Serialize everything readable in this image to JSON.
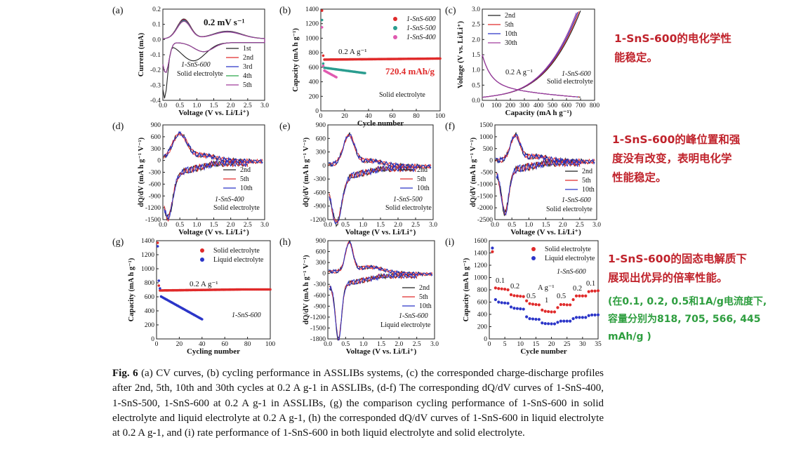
{
  "panels": [
    {
      "letter": "(a)",
      "xlabel": "Voltage (V vs. Li/Li⁺)",
      "ylabel": "Current (mA)",
      "xticks": [
        "0.0",
        "0.5",
        "1.0",
        "1.5",
        "2.0",
        "2.5",
        "3.0"
      ],
      "yticks": [
        "0.2",
        "0.1",
        "0.0",
        "-0.1",
        "-0.2",
        "-0.3",
        "-0.4"
      ],
      "annotation": "0.2 mV s⁻¹",
      "sample": "1-SnS-600",
      "electrolyte": "Solid electrolyte",
      "legend": [
        "1st",
        "2nd",
        "3rd",
        "4th",
        "5th"
      ]
    },
    {
      "letter": "(b)",
      "xlabel": "Cycle number",
      "ylabel": "Capacity (mA h g⁻¹)",
      "xticks": [
        "0",
        "20",
        "40",
        "60",
        "80",
        "100"
      ],
      "yticks": [
        "1400",
        "1200",
        "1000",
        "800",
        "600",
        "400",
        "200",
        "0"
      ],
      "annotation": "0.2 A g⁻¹",
      "highlight": "720.4  mAh/g",
      "electrolyte": "Solid electrolyte",
      "legend": [
        "1-SnS-600",
        "1-SnS-500",
        "1-SnS-400"
      ]
    },
    {
      "letter": "(c)",
      "xlabel": "Capacity (mA h g⁻¹)",
      "ylabel": "Voltage (V vs. Li/Li⁺)",
      "xticks": [
        "0",
        "100",
        "200",
        "300",
        "400",
        "500",
        "600",
        "700",
        "800"
      ],
      "yticks": [
        "3.0",
        "2.5",
        "2.0",
        "1.5",
        "1.0",
        "0.5",
        "0.0"
      ],
      "annotation": "0.2 A g⁻¹",
      "sample": "1-SnS-600",
      "electrolyte": "Solid electrolyte",
      "legend": [
        "2nd",
        "5th",
        "10th",
        "30th"
      ]
    },
    {
      "letter": "(d)",
      "xlabel": "Voltage (V vs. Li/Li⁺)",
      "ylabel": "dQ/dV (mA h g⁻¹ V⁻¹)",
      "xticks": [
        "0.0",
        "0.5",
        "1.0",
        "1.5",
        "2.0",
        "2.5",
        "3.0"
      ],
      "yticks": [
        "900",
        "600",
        "300",
        "0",
        "-300",
        "-600",
        "-900",
        "-1200",
        "-1500"
      ],
      "sample": "1-SnS-400",
      "electrolyte": "Solid electrolyte",
      "legend": [
        "2nd",
        "5th",
        "10th"
      ]
    },
    {
      "letter": "(e)",
      "xlabel": "Voltage (V vs. Li/Li⁺)",
      "ylabel": "dQ/dV (mA h g⁻¹ V⁻¹)",
      "xticks": [
        "0.0",
        "0.5",
        "1.0",
        "1.5",
        "2.0",
        "2.5",
        "3.0"
      ],
      "yticks": [
        "900",
        "600",
        "300",
        "0",
        "-300",
        "-600",
        "-900",
        "-1200"
      ],
      "sample": "1-SnS-500",
      "electrolyte": "Solid electrolyte",
      "legend": [
        "2nd",
        "5th",
        "10th"
      ]
    },
    {
      "letter": "(f)",
      "xlabel": "Voltage (V vs. Li/Li⁺)",
      "ylabel": "dQ/dV (mA h g⁻¹ V⁻¹)",
      "xticks": [
        "0.0",
        "0.5",
        "1.0",
        "1.5",
        "2.0",
        "2.5",
        "3.0"
      ],
      "yticks": [
        "1500",
        "1000",
        "500",
        "0",
        "-500",
        "-1000",
        "-1500",
        "-2000",
        "-2500"
      ],
      "sample": "1-SnS-600",
      "electrolyte": "Solid electrolyte",
      "legend": [
        "2nd",
        "5th",
        "10th"
      ]
    },
    {
      "letter": "(g)",
      "xlabel": "Cycling number",
      "ylabel": "Capacity (mA h g⁻¹)",
      "xticks": [
        "0",
        "20",
        "40",
        "60",
        "80",
        "100"
      ],
      "yticks": [
        "1400",
        "1200",
        "1000",
        "800",
        "600",
        "400",
        "200",
        "0"
      ],
      "annotation": "0.2 A g⁻¹",
      "sample": "1-SnS-600",
      "legend": [
        "Solid electrolyte",
        "Liquid electrolyte"
      ]
    },
    {
      "letter": "(h)",
      "xlabel": "Voltage (V vs. Li/Li⁺)",
      "ylabel": "dQ/dV (mA h g⁻¹ V⁻¹)",
      "xticks": [
        "0.0",
        "0.5",
        "1.0",
        "1.5",
        "2.0",
        "2.5",
        "3.0"
      ],
      "yticks": [
        "900",
        "600",
        "300",
        "0",
        "-300",
        "-600",
        "-900",
        "-1200",
        "-1500",
        "-1800"
      ],
      "sample": "1-SnS-600",
      "electrolyte": "Liquid electrolyte",
      "legend": [
        "2nd",
        "5th",
        "10th"
      ]
    },
    {
      "letter": "(i)",
      "xlabel": "Cycle number",
      "ylabel": "Capacity (mA h g⁻¹)",
      "xticks": [
        "0",
        "5",
        "10",
        "15",
        "20",
        "25",
        "30",
        "35"
      ],
      "yticks": [
        "1600",
        "1400",
        "1200",
        "1000",
        "800",
        "600",
        "400",
        "200",
        "0"
      ],
      "sample": "1-SnS-600",
      "unit": "A g⁻¹",
      "rates": [
        "0.1",
        "0.2",
        "0.5",
        "1",
        "0.5",
        "0.2",
        "0.1"
      ],
      "legend": [
        "Solid electrolyte",
        "Liquid electrolyte"
      ]
    }
  ],
  "notes": {
    "n1": [
      "1-SnS-600的电化学性",
      "能稳定。"
    ],
    "n2": [
      "1-SnS-600的峰位置和强",
      "度没有改变，表明电化学",
      "性能稳定。"
    ],
    "n3": [
      "1-SnS-600的固态电解质下",
      "展现出优异的倍率性能。"
    ],
    "n4": [
      "(在0.1, 0.2, 0.5和1A/g电流度下,",
      "容量分别为818, 705, 566, 445",
      "mAh/g )"
    ]
  },
  "caption": {
    "label": "Fig. 6",
    "text": "(a) CV curves, (b) cycling performance in ASSLIBs systems, (c) the corresponded charge-discharge profiles after 2nd, 5th, 10th and 30th cycles at 0.2 A g-1 in ASSLIBs, (d-f) The corresponding dQ/dV curves of 1-SnS-400, 1-SnS-500, 1-SnS-600 at 0.2 A g-1 in ASSLIBs, (g) the comparison cycling performance of 1-SnS-600 in solid electrolyte and liquid electrolyte at 0.2 A g-1, (h) the corresponded dQ/dV curves of 1-SnS-600 in liquid electrolyte at 0.2 A g-1, and (i) rate performance of 1-SnS-600 in both liquid electrolyte and solid electrolyte."
  },
  "colors": {
    "black": "#222222",
    "red": "#e02a2a",
    "teal": "#2a9d8f",
    "blue": "#2b35c8",
    "purple": "#a03c9c",
    "magenta": "#e05ab0",
    "green": "#2ba84a",
    "note_red": "#c0222b",
    "note_green": "#2e9e3f"
  }
}
